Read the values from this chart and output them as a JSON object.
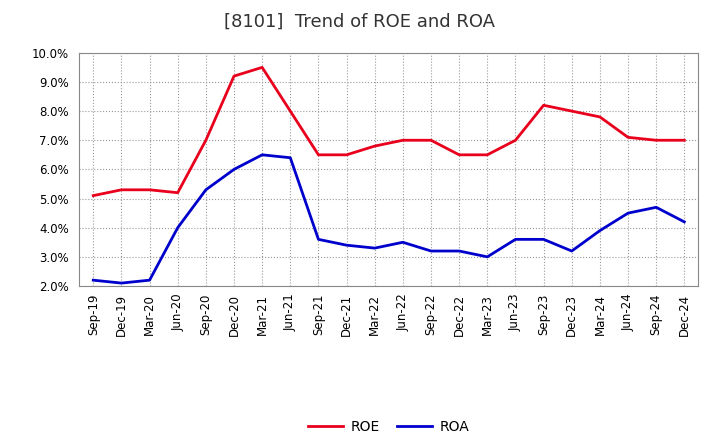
{
  "title": "[8101]  Trend of ROE and ROA",
  "labels": [
    "Sep-19",
    "Dec-19",
    "Mar-20",
    "Jun-20",
    "Sep-20",
    "Dec-20",
    "Mar-21",
    "Jun-21",
    "Sep-21",
    "Dec-21",
    "Mar-22",
    "Jun-22",
    "Sep-22",
    "Dec-22",
    "Mar-23",
    "Jun-23",
    "Sep-23",
    "Dec-23",
    "Mar-24",
    "Jun-24",
    "Sep-24",
    "Dec-24"
  ],
  "roe": [
    5.1,
    5.3,
    5.3,
    5.2,
    7.0,
    9.2,
    9.5,
    8.0,
    6.5,
    6.5,
    6.8,
    7.0,
    7.0,
    6.5,
    6.5,
    7.0,
    8.2,
    8.0,
    7.8,
    7.1,
    7.0,
    7.0
  ],
  "roa": [
    2.2,
    2.1,
    2.2,
    4.0,
    5.3,
    6.0,
    6.5,
    6.4,
    3.6,
    3.4,
    3.3,
    3.5,
    3.2,
    3.2,
    3.0,
    3.6,
    3.6,
    3.2,
    3.9,
    4.5,
    4.7,
    4.2
  ],
  "roe_color": "#e8001c",
  "roa_color": "#0000cc",
  "ylim": [
    2.0,
    10.0
  ],
  "yticks": [
    2.0,
    3.0,
    4.0,
    5.0,
    6.0,
    7.0,
    8.0,
    9.0,
    10.0
  ],
  "background_color": "#ffffff",
  "plot_bg_color": "#ffffff",
  "grid_color": "#999999",
  "title_fontsize": 13,
  "tick_fontsize": 8.5,
  "legend_fontsize": 10,
  "line_width": 2.0
}
